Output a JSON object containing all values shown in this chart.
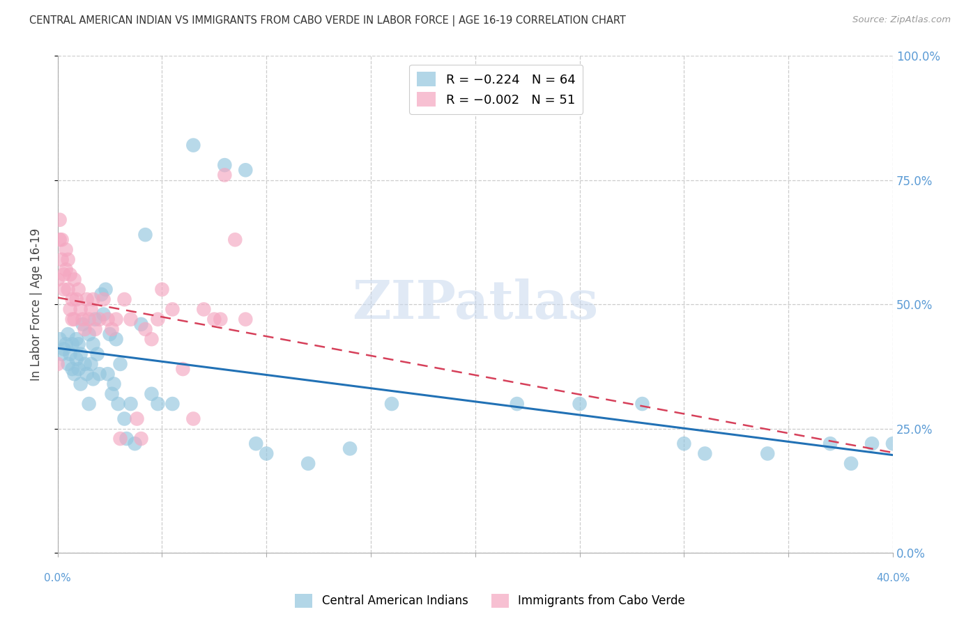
{
  "title": "CENTRAL AMERICAN INDIAN VS IMMIGRANTS FROM CABO VERDE IN LABOR FORCE | AGE 16-19 CORRELATION CHART",
  "source": "Source: ZipAtlas.com",
  "ylabel": "In Labor Force | Age 16-19",
  "right_yticklabels": [
    "0.0%",
    "25.0%",
    "50.0%",
    "75.0%",
    "100.0%"
  ],
  "right_yticks": [
    0.0,
    0.25,
    0.5,
    0.75,
    1.0
  ],
  "xmin": 0.0,
  "xmax": 0.4,
  "ymin": 0.0,
  "ymax": 1.0,
  "blue_color": "#92c5de",
  "pink_color": "#f4a6c0",
  "blue_line_color": "#2171b5",
  "pink_line_color": "#d6405a",
  "legend_blue_label": "R = −0.224   N = 64",
  "legend_pink_label": "R = −0.002   N = 51",
  "legend_label_blue": "Central American Indians",
  "legend_label_pink": "Immigrants from Cabo Verde",
  "watermark": "ZIPatlas",
  "title_color": "#333333",
  "axis_color": "#5b9bd5",
  "grid_color": "#cccccc",
  "blue_scatter_x": [
    0.001,
    0.002,
    0.003,
    0.004,
    0.005,
    0.005,
    0.006,
    0.007,
    0.007,
    0.008,
    0.009,
    0.009,
    0.01,
    0.01,
    0.011,
    0.011,
    0.012,
    0.013,
    0.014,
    0.015,
    0.015,
    0.016,
    0.017,
    0.017,
    0.018,
    0.019,
    0.02,
    0.021,
    0.022,
    0.023,
    0.024,
    0.025,
    0.026,
    0.027,
    0.028,
    0.029,
    0.03,
    0.032,
    0.033,
    0.035,
    0.037,
    0.04,
    0.042,
    0.045,
    0.048,
    0.055,
    0.065,
    0.08,
    0.09,
    0.095,
    0.1,
    0.12,
    0.14,
    0.16,
    0.22,
    0.25,
    0.28,
    0.3,
    0.31,
    0.34,
    0.37,
    0.38,
    0.39,
    0.4
  ],
  "blue_scatter_y": [
    0.43,
    0.4,
    0.41,
    0.42,
    0.44,
    0.38,
    0.4,
    0.37,
    0.42,
    0.36,
    0.39,
    0.43,
    0.37,
    0.42,
    0.34,
    0.4,
    0.46,
    0.38,
    0.36,
    0.44,
    0.3,
    0.38,
    0.42,
    0.35,
    0.47,
    0.4,
    0.36,
    0.52,
    0.48,
    0.53,
    0.36,
    0.44,
    0.32,
    0.34,
    0.43,
    0.3,
    0.38,
    0.27,
    0.23,
    0.3,
    0.22,
    0.46,
    0.64,
    0.32,
    0.3,
    0.3,
    0.82,
    0.78,
    0.77,
    0.22,
    0.2,
    0.18,
    0.21,
    0.3,
    0.3,
    0.3,
    0.3,
    0.22,
    0.2,
    0.2,
    0.22,
    0.18,
    0.22,
    0.22
  ],
  "pink_scatter_x": [
    0.0,
    0.0,
    0.001,
    0.001,
    0.002,
    0.002,
    0.003,
    0.003,
    0.004,
    0.004,
    0.005,
    0.005,
    0.006,
    0.006,
    0.007,
    0.007,
    0.008,
    0.008,
    0.009,
    0.01,
    0.011,
    0.012,
    0.013,
    0.014,
    0.015,
    0.016,
    0.017,
    0.018,
    0.02,
    0.022,
    0.024,
    0.026,
    0.028,
    0.03,
    0.032,
    0.035,
    0.038,
    0.04,
    0.042,
    0.045,
    0.048,
    0.05,
    0.055,
    0.06,
    0.065,
    0.07,
    0.075,
    0.078,
    0.08,
    0.085,
    0.09
  ],
  "pink_scatter_y": [
    0.38,
    0.55,
    0.63,
    0.67,
    0.63,
    0.59,
    0.56,
    0.53,
    0.61,
    0.57,
    0.53,
    0.59,
    0.49,
    0.56,
    0.51,
    0.47,
    0.55,
    0.47,
    0.51,
    0.53,
    0.49,
    0.47,
    0.45,
    0.51,
    0.47,
    0.49,
    0.51,
    0.45,
    0.47,
    0.51,
    0.47,
    0.45,
    0.47,
    0.23,
    0.51,
    0.47,
    0.27,
    0.23,
    0.45,
    0.43,
    0.47,
    0.53,
    0.49,
    0.37,
    0.27,
    0.49,
    0.47,
    0.47,
    0.76,
    0.63,
    0.47
  ]
}
